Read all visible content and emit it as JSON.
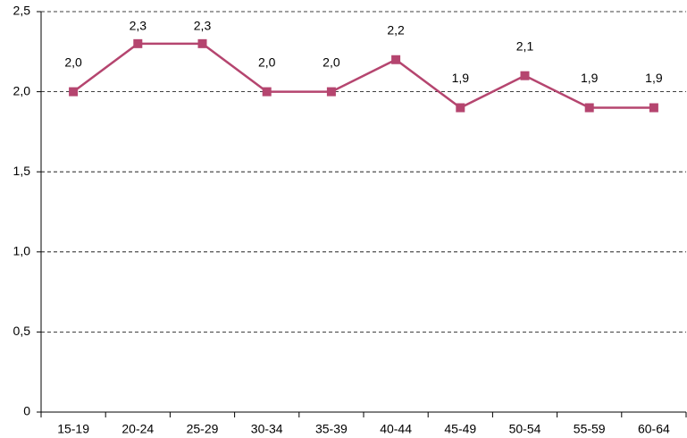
{
  "chart_data": {
    "type": "line",
    "categories": [
      "15-19",
      "20-24",
      "25-29",
      "30-34",
      "35-39",
      "40-44",
      "45-49",
      "50-54",
      "55-59",
      "60-64"
    ],
    "series": [
      {
        "color": "#b5456f",
        "values": [
          2.0,
          2.3,
          2.3,
          2.0,
          2.0,
          2.2,
          1.9,
          2.1,
          1.9,
          1.9
        ],
        "value_labels": [
          "2,0",
          "2,3",
          "2,3",
          "2,0",
          "2,0",
          "2,2",
          "1,9",
          "2,1",
          "1,9",
          "1,9"
        ]
      }
    ],
    "ylim": [
      0,
      2.5
    ],
    "yticks": [
      0,
      {
        "value": 0.5,
        "label": "0,5"
      },
      {
        "value": 1.0,
        "label": "1,0"
      },
      {
        "value": 1.5,
        "label": "1,5"
      },
      {
        "value": 2.0,
        "label": "2,0"
      },
      {
        "value": 2.5,
        "label": "2,5"
      }
    ],
    "grid": true
  }
}
